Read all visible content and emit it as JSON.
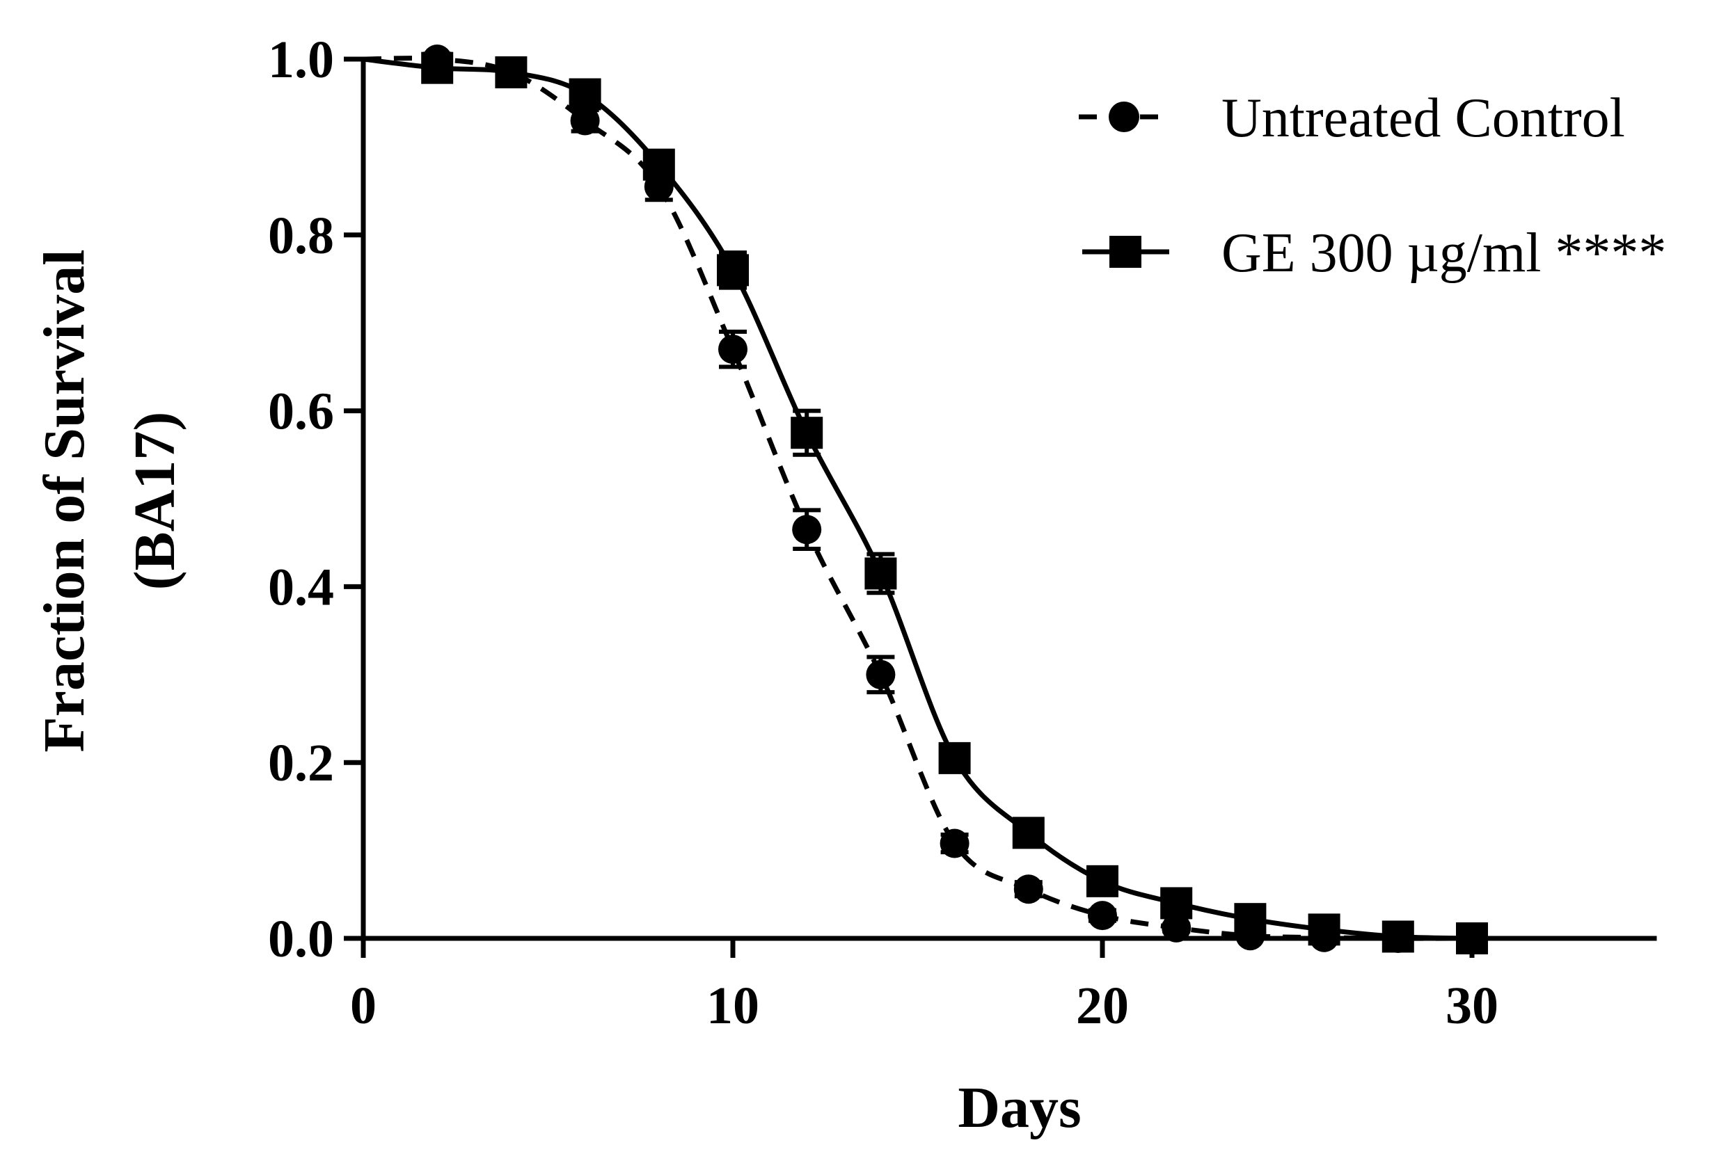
{
  "chart_data": {
    "type": "line",
    "title": "",
    "xlabel": "Days",
    "ylabel_line1": "Fraction of Survival",
    "ylabel_line2": "(BA17)",
    "xlim": [
      0,
      35
    ],
    "ylim": [
      0,
      1.0
    ],
    "xticks": [
      0,
      10,
      20,
      30
    ],
    "xtick_labels": [
      "0",
      "10",
      "20",
      "30"
    ],
    "yticks": [
      0.0,
      0.2,
      0.4,
      0.6,
      0.8,
      1.0
    ],
    "ytick_labels": [
      "0.0",
      "0.2",
      "0.4",
      "0.6",
      "0.8",
      "1.0"
    ],
    "grid": false,
    "legend_position": "top-right",
    "x": [
      0,
      2,
      4,
      6,
      8,
      10,
      12,
      14,
      16,
      18,
      20,
      22,
      24,
      26,
      28,
      30
    ],
    "series": [
      {
        "name": "Untreated Control",
        "marker": "circle",
        "line_style": "dashed",
        "color": "#000000",
        "values": [
          1.0,
          1.0,
          0.985,
          0.93,
          0.855,
          0.67,
          0.465,
          0.3,
          0.108,
          0.056,
          0.026,
          0.012,
          0.003,
          0.001,
          0.0,
          0.0
        ],
        "errors": [
          0,
          0.006,
          0.008,
          0.012,
          0.015,
          0.02,
          0.022,
          0.02,
          0.01,
          0.008,
          0.006,
          0.004,
          0.002,
          0.001,
          0,
          0
        ]
      },
      {
        "name": "GE 300 µg/ml ****",
        "marker": "square",
        "line_style": "solid",
        "color": "#000000",
        "values": [
          1.0,
          0.99,
          0.985,
          0.96,
          0.88,
          0.76,
          0.575,
          0.415,
          0.205,
          0.12,
          0.065,
          0.04,
          0.022,
          0.01,
          0.002,
          0.0
        ],
        "errors": [
          0,
          0.008,
          0.008,
          0.012,
          0.015,
          0.02,
          0.025,
          0.022,
          0.015,
          0.01,
          0.008,
          0.006,
          0.004,
          0.002,
          0.001,
          0
        ]
      }
    ]
  }
}
